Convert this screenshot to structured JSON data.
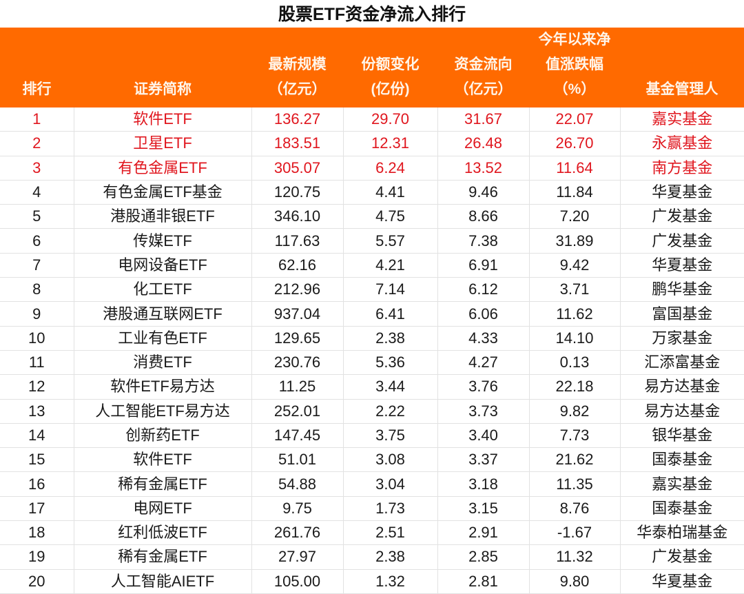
{
  "title": "股票ETF资金净流入排行",
  "colors": {
    "header_bg": "#FF6A00",
    "highlight_text": "#E0161E"
  },
  "highlighted_ranks": [
    1,
    2,
    3
  ],
  "columns": [
    {
      "lines": [
        "排行"
      ]
    },
    {
      "lines": [
        "证券简称"
      ]
    },
    {
      "lines": [
        "最新规模",
        "（亿元）"
      ]
    },
    {
      "lines": [
        "份额变化",
        "(亿份)"
      ]
    },
    {
      "lines": [
        "资金流向",
        "（亿元）"
      ]
    },
    {
      "lines": [
        "今年以来净",
        "值涨跌幅",
        "（%）"
      ]
    },
    {
      "lines": [
        "基金管理人"
      ]
    }
  ],
  "rows": [
    [
      "1",
      "软件ETF",
      "136.27",
      "29.70",
      "31.67",
      "22.07",
      "嘉实基金"
    ],
    [
      "2",
      "卫星ETF",
      "183.51",
      "12.31",
      "26.48",
      "26.70",
      "永赢基金"
    ],
    [
      "3",
      "有色金属ETF",
      "305.07",
      "6.24",
      "13.52",
      "11.64",
      "南方基金"
    ],
    [
      "4",
      "有色金属ETF基金",
      "120.75",
      "4.41",
      "9.46",
      "11.84",
      "华夏基金"
    ],
    [
      "5",
      "港股通非银ETF",
      "346.10",
      "4.75",
      "8.66",
      "7.20",
      "广发基金"
    ],
    [
      "6",
      "传媒ETF",
      "117.63",
      "5.57",
      "7.38",
      "31.89",
      "广发基金"
    ],
    [
      "7",
      "电网设备ETF",
      "62.16",
      "4.21",
      "6.91",
      "9.42",
      "华夏基金"
    ],
    [
      "8",
      "化工ETF",
      "212.96",
      "7.14",
      "6.12",
      "3.71",
      "鹏华基金"
    ],
    [
      "9",
      "港股通互联网ETF",
      "937.04",
      "6.41",
      "6.06",
      "11.62",
      "富国基金"
    ],
    [
      "10",
      "工业有色ETF",
      "129.65",
      "2.38",
      "4.33",
      "14.10",
      "万家基金"
    ],
    [
      "11",
      "消费ETF",
      "230.76",
      "5.36",
      "4.27",
      "0.13",
      "汇添富基金"
    ],
    [
      "12",
      "软件ETF易方达",
      "11.25",
      "3.44",
      "3.76",
      "22.18",
      "易方达基金"
    ],
    [
      "13",
      "人工智能ETF易方达",
      "252.01",
      "2.22",
      "3.73",
      "9.82",
      "易方达基金"
    ],
    [
      "14",
      "创新药ETF",
      "147.45",
      "3.75",
      "3.40",
      "7.73",
      "银华基金"
    ],
    [
      "15",
      "软件ETF",
      "51.01",
      "3.08",
      "3.37",
      "21.62",
      "国泰基金"
    ],
    [
      "16",
      "稀有金属ETF",
      "54.88",
      "3.04",
      "3.18",
      "11.35",
      "嘉实基金"
    ],
    [
      "17",
      "电网ETF",
      "9.75",
      "1.73",
      "3.15",
      "8.76",
      "国泰基金"
    ],
    [
      "18",
      "红利低波ETF",
      "261.76",
      "2.51",
      "2.91",
      "-1.67",
      "华泰柏瑞基金"
    ],
    [
      "19",
      "稀有金属ETF",
      "27.97",
      "2.38",
      "2.85",
      "11.32",
      "广发基金"
    ],
    [
      "20",
      "人工智能AIETF",
      "105.00",
      "1.32",
      "2.81",
      "9.80",
      "华夏基金"
    ]
  ]
}
